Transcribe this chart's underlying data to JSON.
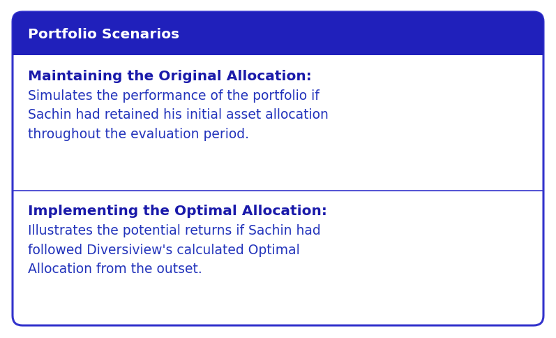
{
  "title": "Portfolio Scenarios",
  "title_bg_color": "#2020bb",
  "title_text_color": "#ffffff",
  "card_bg_color": "#ffffff",
  "card_border_color": "#3333cc",
  "bg_color": "#ffffff",
  "divider_color": "#3333cc",
  "section1_heading": "Maintaining the Original Allocation:",
  "section1_body": "Simulates the performance of the portfolio if\nSachin had retained his initial asset allocation\nthroughout the evaluation period.",
  "section2_heading": "Implementing the Optimal Allocation:",
  "section2_body": "Illustrates the potential returns if Sachin had\nfollowed Diversiview's calculated Optimal\nAllocation from the outset.",
  "heading_color": "#1a1aaa",
  "body_color": "#2233bb",
  "heading_fontsize": 14.5,
  "body_fontsize": 13.5,
  "title_fontsize": 14.5,
  "fig_width": 7.97,
  "fig_height": 4.85,
  "dpi": 100
}
